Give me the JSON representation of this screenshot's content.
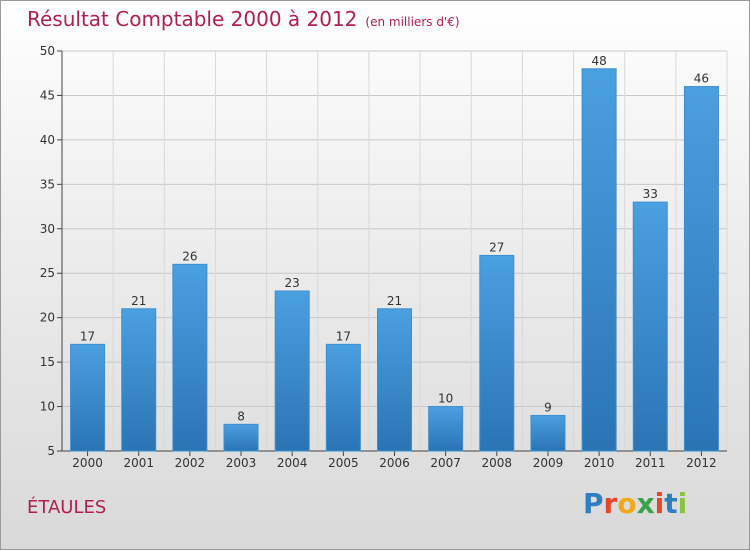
{
  "page": {
    "title": "Résultat Comptable 2000 à 2012",
    "subtitle": "(en milliers d'€)",
    "commune": "ÉTAULES",
    "logo": {
      "letters": [
        "P",
        "r",
        "o",
        "x",
        "i",
        "t",
        "i"
      ],
      "colors": [
        "#2e7ec4",
        "#e2462b",
        "#f0a81d",
        "#3aa34a",
        "#e2462b",
        "#2e7ec4",
        "#8ac43f"
      ]
    }
  },
  "chart_data": {
    "type": "bar",
    "title": "Résultat Comptable 2000 à 2012",
    "subtitle": "(en milliers d'€)",
    "categories": [
      "2000",
      "2001",
      "2002",
      "2003",
      "2004",
      "2005",
      "2006",
      "2007",
      "2008",
      "2009",
      "2010",
      "2011",
      "2012"
    ],
    "values": [
      17,
      21,
      26,
      8,
      23,
      17,
      21,
      10,
      27,
      9,
      48,
      33,
      46
    ],
    "data_labels": [
      "17",
      "21",
      "26",
      "8",
      "23",
      "17",
      "21",
      "10",
      "27",
      "9",
      "48",
      "33",
      "46"
    ],
    "ylim": [
      5,
      50
    ],
    "yticks": [
      5,
      10,
      15,
      20,
      25,
      30,
      35,
      40,
      45,
      50
    ],
    "ytick_labels": [
      "5",
      "10",
      "15",
      "20",
      "25",
      "30",
      "35",
      "40",
      "45",
      "50"
    ],
    "xlabel": "",
    "ylabel": "",
    "grid": true,
    "bar_color": "#4ba0e0",
    "bar_color_dark": "#2a74b4"
  }
}
